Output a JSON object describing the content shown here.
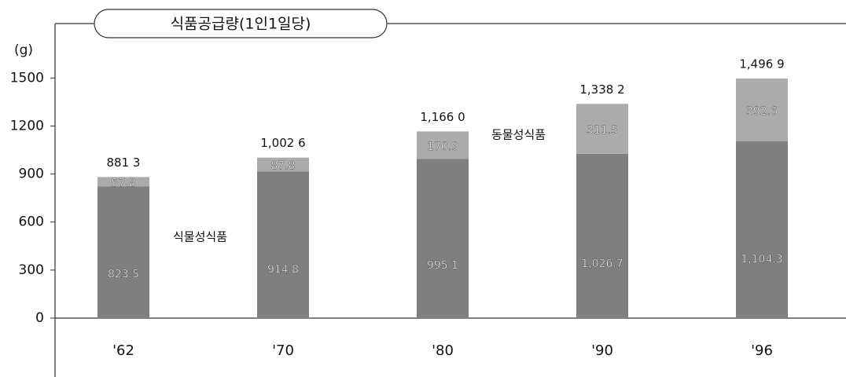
{
  "chart_data": {
    "type": "stacked_bar",
    "title": "식품공급량(1인1일당)",
    "y_label": "(g)",
    "categories": [
      "'62",
      "'70",
      "'80",
      "'90",
      "'96"
    ],
    "series": [
      {
        "name": "식물성식품",
        "color": "#7f7f7f",
        "values": [
          823.5,
          914.8,
          995.1,
          1026.7,
          1104.3
        ],
        "value_labels": [
          "823.5",
          "914.8",
          "995.1",
          "1,026.7",
          "1,104.3"
        ]
      },
      {
        "name": "동물성식품",
        "color": "#ababab",
        "values": [
          57.8,
          87.8,
          170.9,
          311.5,
          392.6
        ]
      }
    ],
    "totals": {
      "values": [
        881.3,
        1002.6,
        1166.0,
        1338.2,
        1496.9
      ],
      "value_labels": [
        "881 3",
        "1,002 6",
        "1,166 0",
        "1,338 2",
        "1,496 9"
      ]
    },
    "ylim": [
      0,
      1840
    ],
    "yticks": [
      0,
      300,
      600,
      900,
      1200,
      1500
    ],
    "grid": false
  }
}
